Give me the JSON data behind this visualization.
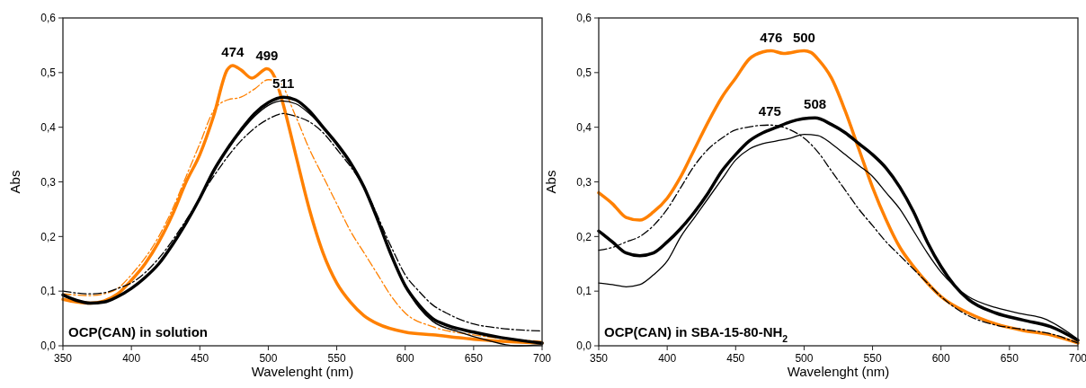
{
  "chart_data": [
    {
      "type": "line",
      "xlabel": "Wavelenght (nm)",
      "ylabel": "Abs",
      "xlim": [
        350,
        700
      ],
      "ylim": [
        0,
        0.6
      ],
      "xticks": [
        350,
        400,
        450,
        500,
        550,
        600,
        650,
        700
      ],
      "yticks": [
        {
          "value": 0,
          "label": "0,0"
        },
        {
          "value": 0.1,
          "label": "0,1"
        },
        {
          "value": 0.2,
          "label": "0,2"
        },
        {
          "value": 0.3,
          "label": "0,3"
        },
        {
          "value": 0.4,
          "label": "0,4"
        },
        {
          "value": 0.5,
          "label": "0,5"
        },
        {
          "value": 0.6,
          "label": "0,6"
        }
      ],
      "grid": false,
      "marker": "none",
      "annotations": [
        {
          "text": "474",
          "x": 474,
          "y": 0.513
        },
        {
          "text": "499",
          "x": 499,
          "y": 0.507
        },
        {
          "text": "511",
          "x": 511,
          "y": 0.455
        },
        "OCP(CAN) in solution"
      ],
      "series": [
        {
          "color": "#ff8000",
          "line_style": "solid",
          "x": [
            350,
            360,
            370,
            380,
            390,
            400,
            410,
            420,
            430,
            440,
            450,
            460,
            470,
            474,
            480,
            488,
            499,
            505,
            510,
            520,
            530,
            540,
            550,
            560,
            570,
            580,
            600,
            620,
            650,
            700
          ],
          "values": [
            0.085,
            0.08,
            0.078,
            0.082,
            0.095,
            0.12,
            0.15,
            0.19,
            0.24,
            0.3,
            0.35,
            0.42,
            0.505,
            0.513,
            0.505,
            0.49,
            0.507,
            0.49,
            0.45,
            0.35,
            0.25,
            0.17,
            0.115,
            0.08,
            0.055,
            0.04,
            0.025,
            0.02,
            0.012,
            0.005
          ]
        },
        {
          "color": "#ff8000",
          "line_style": "dashed",
          "x": [
            350,
            370,
            380,
            390,
            400,
            420,
            430,
            440,
            450,
            460,
            470,
            480,
            490,
            500,
            507,
            520,
            530,
            540,
            550,
            560,
            570,
            580,
            590,
            600,
            620,
            650,
            700
          ],
          "values": [
            0.095,
            0.092,
            0.095,
            0.105,
            0.13,
            0.2,
            0.25,
            0.31,
            0.37,
            0.43,
            0.45,
            0.455,
            0.47,
            0.487,
            0.485,
            0.42,
            0.36,
            0.31,
            0.26,
            0.21,
            0.17,
            0.13,
            0.09,
            0.06,
            0.035,
            0.02,
            0.008
          ]
        },
        {
          "color": "#000000",
          "line_style": "dashed",
          "x": [
            350,
            370,
            380,
            390,
            400,
            420,
            440,
            460,
            480,
            500,
            511,
            520,
            530,
            540,
            550,
            570,
            590,
            600,
            610,
            620,
            630,
            650,
            670,
            700
          ],
          "values": [
            0.1,
            0.095,
            0.097,
            0.105,
            0.115,
            0.16,
            0.23,
            0.31,
            0.375,
            0.415,
            0.425,
            0.42,
            0.41,
            0.39,
            0.36,
            0.29,
            0.18,
            0.13,
            0.1,
            0.075,
            0.06,
            0.04,
            0.032,
            0.027
          ]
        },
        {
          "color": "#000000",
          "line_style": "solid",
          "x": [
            350,
            360,
            370,
            380,
            390,
            400,
            410,
            420,
            430,
            440,
            450,
            460,
            470,
            480,
            490,
            500,
            510,
            520,
            530,
            540,
            550,
            560,
            570,
            580,
            590,
            600,
            610,
            620,
            640,
            660,
            680,
            700
          ],
          "values": [
            0.093,
            0.083,
            0.078,
            0.08,
            0.09,
            0.105,
            0.125,
            0.15,
            0.185,
            0.225,
            0.27,
            0.32,
            0.36,
            0.392,
            0.42,
            0.44,
            0.448,
            0.443,
            0.425,
            0.4,
            0.37,
            0.335,
            0.29,
            0.23,
            0.165,
            0.11,
            0.07,
            0.045,
            0.025,
            0.01,
            0.0,
            0.002
          ]
        },
        {
          "color": "#000000",
          "line_style": "solid",
          "x": [
            350,
            360,
            370,
            380,
            390,
            400,
            410,
            420,
            430,
            440,
            450,
            460,
            470,
            480,
            490,
            500,
            511,
            520,
            530,
            540,
            550,
            560,
            570,
            580,
            590,
            600,
            610,
            620,
            630,
            650,
            670,
            700
          ],
          "values": [
            0.093,
            0.083,
            0.078,
            0.08,
            0.09,
            0.105,
            0.125,
            0.15,
            0.185,
            0.225,
            0.27,
            0.32,
            0.36,
            0.395,
            0.425,
            0.445,
            0.455,
            0.45,
            0.43,
            0.4,
            0.37,
            0.335,
            0.29,
            0.23,
            0.165,
            0.11,
            0.075,
            0.05,
            0.038,
            0.025,
            0.015,
            0.005
          ]
        }
      ]
    },
    {
      "type": "line",
      "xlabel": "Wavelenght (nm)",
      "ylabel": "Abs",
      "xlim": [
        350,
        700
      ],
      "ylim": [
        0,
        0.6
      ],
      "xticks": [
        350,
        400,
        450,
        500,
        550,
        600,
        650,
        700
      ],
      "yticks": [
        {
          "value": 0,
          "label": "0,0"
        },
        {
          "value": 0.1,
          "label": "0,1"
        },
        {
          "value": 0.2,
          "label": "0,2"
        },
        {
          "value": 0.3,
          "label": "0,3"
        },
        {
          "value": 0.4,
          "label": "0,4"
        },
        {
          "value": 0.5,
          "label": "0,5"
        },
        {
          "value": 0.6,
          "label": "0,6"
        }
      ],
      "grid": false,
      "marker": "none",
      "annotations": [
        {
          "text": "476",
          "x": 476,
          "y": 0.54
        },
        {
          "text": "500",
          "x": 500,
          "y": 0.54
        },
        {
          "text": "475",
          "x": 475,
          "y": 0.404
        },
        {
          "text": "508",
          "x": 508,
          "y": 0.417
        },
        "OCP(CAN) in SBA-15-80-NH$_{2}$"
      ],
      "series": [
        {
          "color": "#ff8000",
          "line_style": "solid",
          "x": [
            350,
            360,
            370,
            380,
            390,
            400,
            410,
            420,
            430,
            440,
            450,
            460,
            470,
            476,
            485,
            500,
            505,
            510,
            520,
            530,
            540,
            550,
            560,
            570,
            580,
            590,
            600,
            620,
            640,
            660,
            680,
            700
          ],
          "values": [
            0.28,
            0.26,
            0.235,
            0.23,
            0.245,
            0.27,
            0.31,
            0.36,
            0.41,
            0.455,
            0.49,
            0.525,
            0.538,
            0.54,
            0.535,
            0.54,
            0.537,
            0.525,
            0.49,
            0.43,
            0.36,
            0.29,
            0.23,
            0.18,
            0.145,
            0.115,
            0.09,
            0.06,
            0.04,
            0.028,
            0.02,
            0.005
          ]
        },
        {
          "color": "#000000",
          "line_style": "dashed",
          "x": [
            350,
            360,
            370,
            380,
            390,
            400,
            410,
            420,
            430,
            440,
            450,
            475,
            490,
            500,
            510,
            520,
            530,
            540,
            550,
            560,
            570,
            580,
            590,
            600,
            620,
            640,
            660,
            680,
            700
          ],
          "values": [
            0.175,
            0.18,
            0.19,
            0.2,
            0.22,
            0.25,
            0.29,
            0.33,
            0.36,
            0.38,
            0.395,
            0.404,
            0.395,
            0.38,
            0.355,
            0.32,
            0.285,
            0.25,
            0.22,
            0.19,
            0.165,
            0.14,
            0.115,
            0.09,
            0.055,
            0.038,
            0.03,
            0.022,
            0.005
          ]
        },
        {
          "color": "#000000",
          "line_style": "solid",
          "x": [
            350,
            360,
            370,
            380,
            390,
            400,
            410,
            420,
            430,
            440,
            450,
            460,
            470,
            480,
            490,
            500,
            510,
            520,
            530,
            540,
            550,
            560,
            570,
            580,
            590,
            600,
            620,
            640,
            660,
            675,
            700
          ],
          "values": [
            0.115,
            0.112,
            0.108,
            0.112,
            0.13,
            0.155,
            0.2,
            0.235,
            0.27,
            0.305,
            0.34,
            0.36,
            0.37,
            0.375,
            0.38,
            0.387,
            0.385,
            0.37,
            0.35,
            0.33,
            0.31,
            0.28,
            0.25,
            0.21,
            0.17,
            0.135,
            0.09,
            0.07,
            0.058,
            0.05,
            0.012
          ]
        },
        {
          "color": "#000000",
          "line_style": "solid",
          "x": [
            350,
            360,
            370,
            380,
            390,
            400,
            410,
            420,
            430,
            440,
            450,
            460,
            470,
            480,
            490,
            508,
            520,
            530,
            540,
            550,
            560,
            570,
            580,
            590,
            600,
            610,
            620,
            640,
            660,
            680,
            700
          ],
          "values": [
            0.21,
            0.19,
            0.17,
            0.165,
            0.17,
            0.19,
            0.215,
            0.245,
            0.28,
            0.32,
            0.35,
            0.375,
            0.39,
            0.4,
            0.41,
            0.417,
            0.405,
            0.39,
            0.37,
            0.35,
            0.325,
            0.29,
            0.245,
            0.19,
            0.145,
            0.11,
            0.085,
            0.06,
            0.047,
            0.035,
            0.01
          ]
        }
      ]
    }
  ]
}
